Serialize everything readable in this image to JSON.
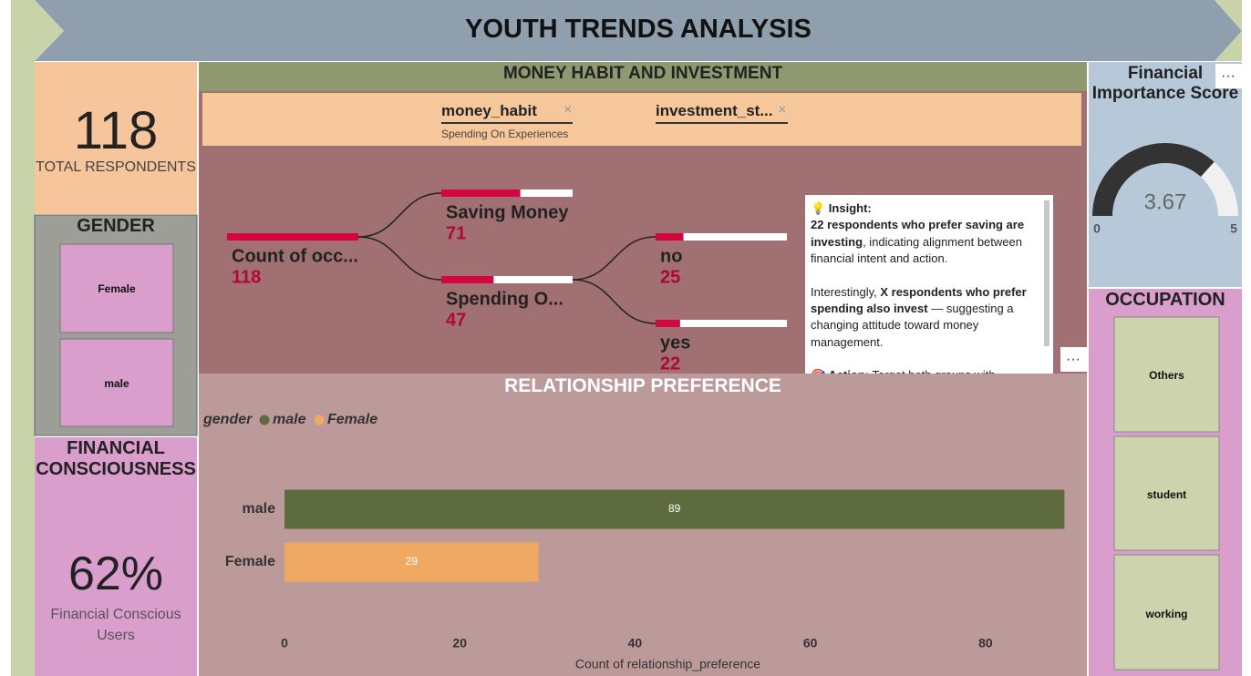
{
  "header": {
    "title": "YOUTH TRENDS ANALYSIS"
  },
  "total_respondents": {
    "value": 118,
    "label": "TOTAL RESPONDENTS"
  },
  "gender": {
    "title": "GENDER",
    "options": [
      "Female",
      "male"
    ]
  },
  "financial_consciousness": {
    "title": "FINANCIAL CONSCIOUSNESS",
    "value": "62%",
    "label": "Financial Conscious Users"
  },
  "money_habit": {
    "title": "MONEY HABIT AND INVESTMENT",
    "slicers": [
      {
        "label": "money_habit",
        "selection": "Spending On Experiences"
      },
      {
        "label": "investment_st..."
      }
    ],
    "tree": {
      "label": "Count of occ...",
      "value": 118,
      "color": "#d4063f",
      "children": [
        {
          "label": "Saving Money",
          "value": 71
        },
        {
          "label": "Spending O...",
          "value": 47,
          "children": [
            {
              "label": "no",
              "value": 25
            },
            {
              "label": "yes",
              "value": 22
            }
          ]
        }
      ]
    },
    "insight": {
      "paragraphs": [
        [
          {
            "text": "💡 Insight:",
            "bold": true
          }
        ],
        [
          {
            "text": "22 respondents who prefer saving are investing",
            "bold": true
          },
          {
            "text": ", indicating alignment between financial intent and action.",
            "bold": false
          }
        ],
        [
          {
            "text": "Interestingly, ",
            "bold": false
          },
          {
            "text": "X respondents who prefer spending also invest",
            "bold": true
          },
          {
            "text": " — suggesting a changing attitude toward money management.",
            "bold": false
          }
        ],
        [
          {
            "text": "🎯 Action:",
            "bold": true
          },
          {
            "text": " Target both groups with",
            "bold": false
          }
        ]
      ]
    }
  },
  "financial_importance": {
    "title": "Financial Importance Score",
    "value": 3.67,
    "min": 0,
    "max": 5
  },
  "occupation": {
    "title": "OCCUPATION",
    "options": [
      "Others",
      "student",
      "working"
    ]
  },
  "chart_data": {
    "type": "bar",
    "orientation": "horizontal",
    "title": "RELATIONSHIP PREFERENCE",
    "legend_title": "gender",
    "categories": [
      "male",
      "Female"
    ],
    "series": [
      {
        "name": "male",
        "color": "#5d6b3e",
        "values": [
          89,
          null
        ]
      },
      {
        "name": "Female",
        "color": "#f0a963",
        "values": [
          null,
          29
        ]
      }
    ],
    "xlim": [
      0,
      90
    ],
    "xticks": [
      0,
      20,
      40,
      60,
      80
    ],
    "x_label": "Count of relationship_preference"
  }
}
